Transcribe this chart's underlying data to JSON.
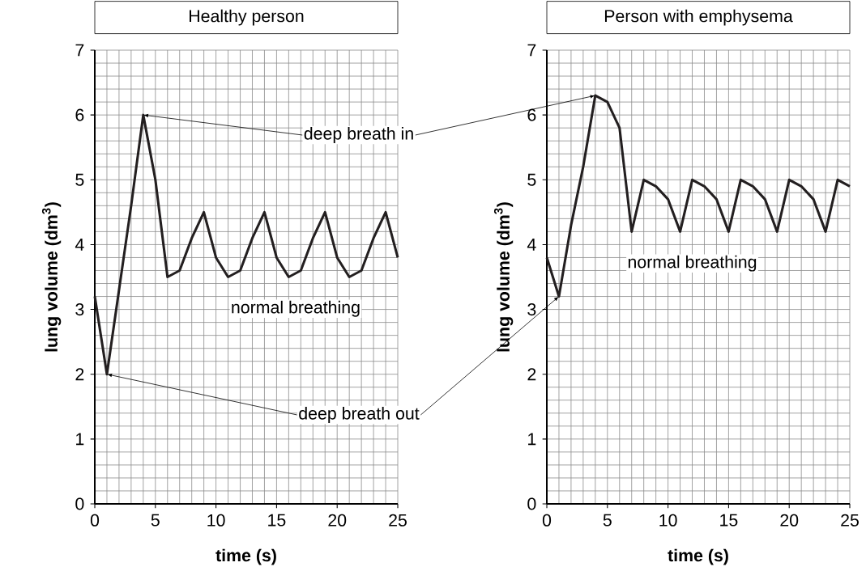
{
  "chart_data": [
    {
      "type": "line",
      "title": "Healthy person",
      "xlabel": "time (s)",
      "ylabel": "lung volume (dm$^{3}$)",
      "x": [
        0,
        1,
        2,
        3,
        4,
        5,
        6,
        7,
        8,
        9,
        10,
        11,
        12,
        13,
        14,
        15,
        16,
        17,
        18,
        19,
        20,
        21,
        22,
        23,
        24,
        25
      ],
      "series": [
        {
          "color": "#231f20",
          "values": [
            3.2,
            2.0,
            3.3,
            4.6,
            6.0,
            5.0,
            3.5,
            3.6,
            4.1,
            4.5,
            3.8,
            3.5,
            3.6,
            4.1,
            4.5,
            3.8,
            3.5,
            3.6,
            4.1,
            4.5,
            3.8,
            3.5,
            3.6,
            4.1,
            4.5,
            3.8
          ]
        }
      ],
      "xlim": [
        0,
        25
      ],
      "ylim": [
        0,
        7
      ],
      "xticks": [
        0,
        5,
        10,
        15,
        20,
        25
      ],
      "yticks": [
        0,
        1,
        2,
        3,
        4,
        5,
        6,
        7
      ],
      "grid": true,
      "line_style": "solid",
      "annotations": [
        {
          "text": "deep breath in",
          "x": 4,
          "y": 6.0
        },
        {
          "text": "deep breath out",
          "x": 1,
          "y": 2.0
        },
        "normal breathing"
      ]
    },
    {
      "type": "line",
      "title": "Person with emphysema",
      "xlabel": "time (s)",
      "ylabel": "lung volume (dm$^{3}$)",
      "x": [
        0,
        1,
        2,
        3,
        4,
        5,
        6,
        7,
        8,
        9,
        10,
        11,
        12,
        13,
        14,
        15,
        16,
        17,
        18,
        19,
        20,
        21,
        22,
        23,
        24,
        25
      ],
      "series": [
        {
          "color": "#231f20",
          "values": [
            3.8,
            3.2,
            4.3,
            5.2,
            6.3,
            6.2,
            5.8,
            4.2,
            5.0,
            4.9,
            4.7,
            4.2,
            5.0,
            4.9,
            4.7,
            4.2,
            5.0,
            4.9,
            4.7,
            4.2,
            5.0,
            4.9,
            4.7,
            4.2,
            5.0,
            4.9
          ]
        }
      ],
      "xlim": [
        0,
        25
      ],
      "ylim": [
        0,
        7
      ],
      "xticks": [
        0,
        5,
        10,
        15,
        20,
        25
      ],
      "yticks": [
        0,
        1,
        2,
        3,
        4,
        5,
        6,
        7
      ],
      "grid": true,
      "line_style": "solid",
      "annotations": [
        "normal breathing"
      ]
    }
  ]
}
